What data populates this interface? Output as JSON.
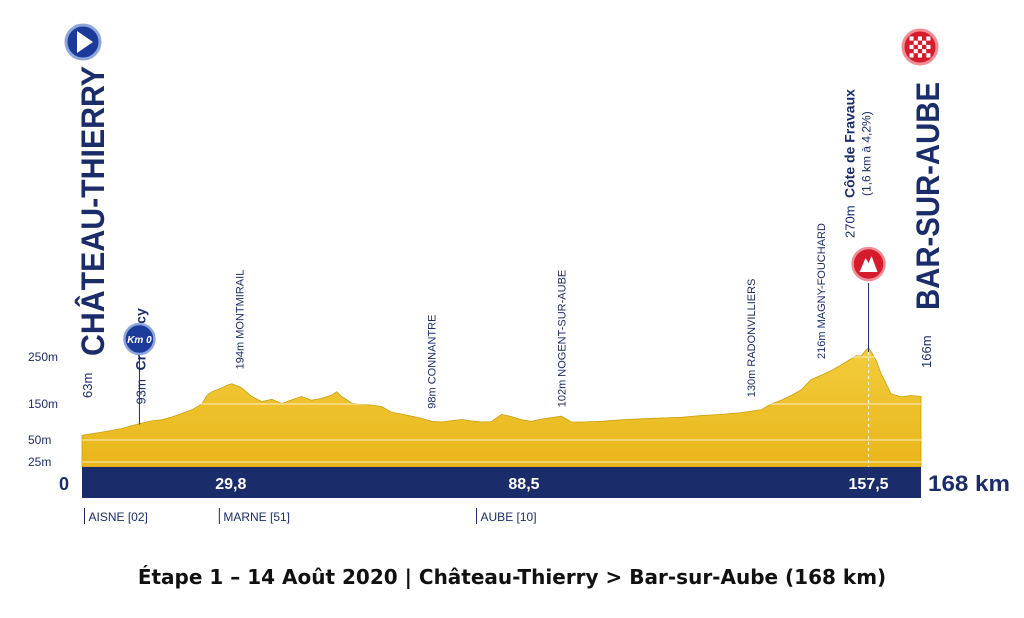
{
  "chart_data": {
    "type": "area",
    "title": "Étape 1 – 14 Août 2020 | Château-Thierry > Bar-sur-Aube (168 km)",
    "start": {
      "name": "CHÂTEAU-THIERRY",
      "altitude_label": "63m"
    },
    "finish": {
      "name": "BAR-SUR-AUBE",
      "altitude_label": "166m"
    },
    "y_ticks": [
      {
        "value": 250,
        "label": "250m"
      },
      {
        "value": 150,
        "label": "150m"
      },
      {
        "value": 50,
        "label": "50m"
      },
      {
        "value": 25,
        "label": "25m"
      }
    ],
    "km_ticks": [
      {
        "km": 29.8,
        "label": "29,8"
      },
      {
        "km": 88.5,
        "label": "88,5"
      },
      {
        "km": 157.5,
        "label": "157,5"
      }
    ],
    "zero_label": "0",
    "total_label": "168 km",
    "xlim": [
      0,
      168
    ],
    "km0_marker": {
      "km": 11.5,
      "label": "Km 0"
    },
    "places": [
      {
        "km": 11.5,
        "altitude": "93m",
        "name": "Crézancy",
        "bold": true
      },
      {
        "km": 31.5,
        "altitude": "194m",
        "name": "MONTMIRAIL"
      },
      {
        "km": 70,
        "altitude": "98m",
        "name": "CONNANTRE"
      },
      {
        "km": 96,
        "altitude": "102m",
        "name": "NOGENT-SUR-AUBE"
      },
      {
        "km": 134,
        "altitude": "130m",
        "name": "RADONVILLIERS"
      },
      {
        "km": 148,
        "altitude": "216m",
        "name": "MAGNY-FOUCHARD"
      }
    ],
    "climb": {
      "km": 157.5,
      "altitude": "270m",
      "name": "Côte de Fravaux",
      "detail": "(1,6 km à 4,2%)"
    },
    "departments": [
      {
        "km": 0.5,
        "label": "AISNE [02]"
      },
      {
        "km": 27.5,
        "label": "MARNE [51]"
      },
      {
        "km": 79,
        "label": "AUBE [10]"
      }
    ],
    "profile": [
      [
        0,
        63
      ],
      [
        4,
        72
      ],
      [
        8,
        82
      ],
      [
        10,
        90
      ],
      [
        12,
        97
      ],
      [
        14,
        103
      ],
      [
        16,
        106
      ],
      [
        18,
        114
      ],
      [
        20,
        124
      ],
      [
        22,
        134
      ],
      [
        24,
        150
      ],
      [
        25,
        168
      ],
      [
        26,
        176
      ],
      [
        28,
        184
      ],
      [
        29,
        190
      ],
      [
        30,
        193
      ],
      [
        31,
        189
      ],
      [
        32,
        184
      ],
      [
        34,
        166
      ],
      [
        36,
        155
      ],
      [
        38,
        160
      ],
      [
        40,
        151
      ],
      [
        42,
        159
      ],
      [
        44,
        166
      ],
      [
        46,
        158
      ],
      [
        48,
        162
      ],
      [
        50,
        169
      ],
      [
        51,
        176
      ],
      [
        52,
        166
      ],
      [
        54,
        152
      ],
      [
        56,
        149
      ],
      [
        58,
        147
      ],
      [
        60,
        143
      ],
      [
        62,
        127
      ],
      [
        64,
        122
      ],
      [
        66,
        116
      ],
      [
        68,
        110
      ],
      [
        70,
        102
      ],
      [
        72,
        100
      ],
      [
        74,
        104
      ],
      [
        76,
        107
      ],
      [
        78,
        103
      ],
      [
        80,
        100
      ],
      [
        82,
        101
      ],
      [
        84,
        121
      ],
      [
        86,
        115
      ],
      [
        88,
        106
      ],
      [
        90,
        102
      ],
      [
        92,
        108
      ],
      [
        94,
        112
      ],
      [
        96,
        116
      ],
      [
        98,
        100
      ],
      [
        100,
        100
      ],
      [
        104,
        102
      ],
      [
        108,
        106
      ],
      [
        112,
        109
      ],
      [
        116,
        111
      ],
      [
        120,
        113
      ],
      [
        124,
        118
      ],
      [
        128,
        121
      ],
      [
        132,
        126
      ],
      [
        136,
        134
      ],
      [
        138,
        150
      ],
      [
        140,
        158
      ],
      [
        142,
        168
      ],
      [
        144,
        180
      ],
      [
        146,
        202
      ],
      [
        148,
        211
      ],
      [
        150,
        221
      ],
      [
        152,
        233
      ],
      [
        154,
        246
      ],
      [
        155,
        253
      ],
      [
        156,
        252
      ],
      [
        157,
        265
      ],
      [
        157.5,
        270
      ],
      [
        158,
        262
      ],
      [
        159,
        243
      ],
      [
        160,
        215
      ],
      [
        161,
        194
      ],
      [
        162,
        172
      ],
      [
        164,
        165
      ],
      [
        166,
        168
      ],
      [
        168,
        166
      ]
    ]
  }
}
